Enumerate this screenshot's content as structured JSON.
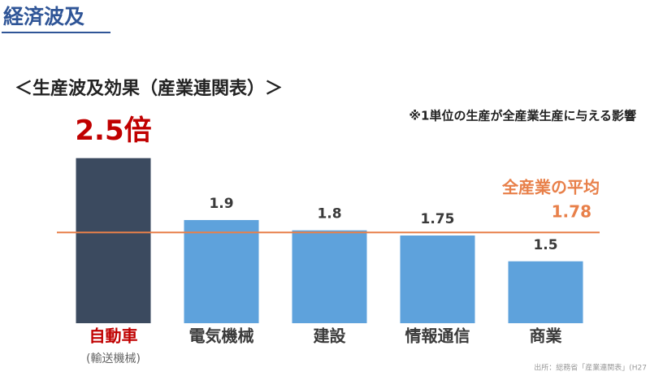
{
  "header": {
    "title": "経済波及"
  },
  "chart_data": {
    "type": "bar",
    "title": "＜生産波及効果（産業連関表）＞",
    "note": "※1単位の生産が全産業生産に与える影響",
    "categories": [
      "自動車",
      "電気機械",
      "建設",
      "情報通信",
      "商業"
    ],
    "category_notes": [
      "(輸送機械)",
      null,
      null,
      null,
      null
    ],
    "values": [
      2.5,
      1.9,
      1.8,
      1.75,
      1.5
    ],
    "value_labels": [
      "2.5倍",
      "1.9",
      "1.8",
      "1.75",
      "1.5"
    ],
    "colors": [
      "#3b4a5f",
      "#5ea2dc",
      "#5ea2dc",
      "#5ea2dc",
      "#5ea2dc"
    ],
    "label_colors": [
      "#c00000",
      "#3a3a3a",
      "#3a3a3a",
      "#3a3a3a",
      "#3a3a3a"
    ],
    "average": {
      "label": "全産業の平均",
      "value": 1.78,
      "color": "#e8804a"
    },
    "ylim": [
      0.9,
      2.6
    ],
    "source": "出所：総務省「産業連関表」(H27"
  }
}
